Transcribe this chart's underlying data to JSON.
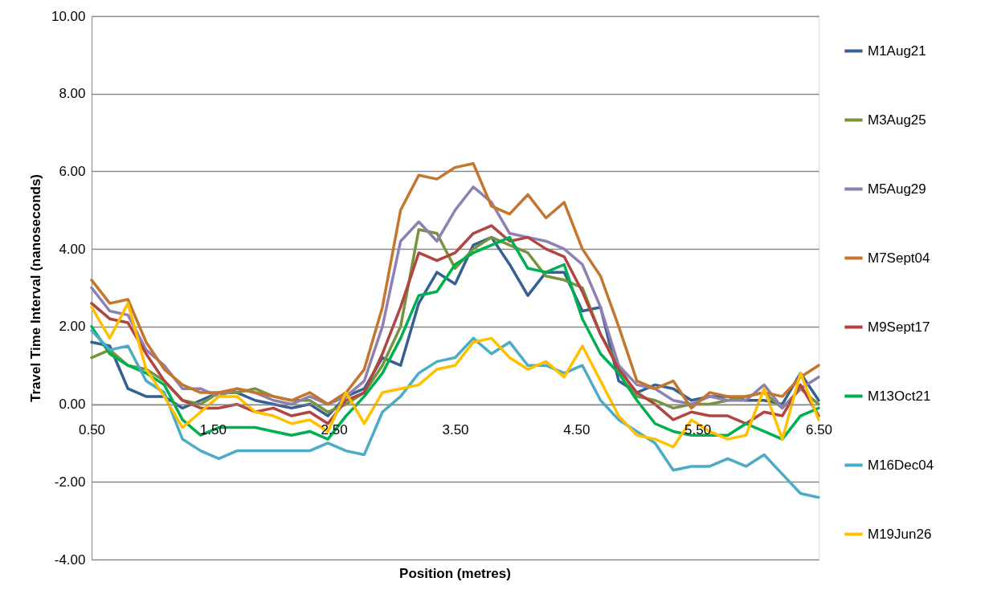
{
  "chart_data": {
    "type": "line",
    "xlabel": "Position (metres)",
    "ylabel": "Travel Time Interval (nanoseconds)",
    "x": [
      0.5,
      0.65,
      0.8,
      0.95,
      1.1,
      1.25,
      1.4,
      1.55,
      1.7,
      1.85,
      2.0,
      2.15,
      2.3,
      2.45,
      2.6,
      2.75,
      2.9,
      3.05,
      3.2,
      3.35,
      3.5,
      3.65,
      3.8,
      3.95,
      4.1,
      4.25,
      4.4,
      4.55,
      4.7,
      4.85,
      5.0,
      5.15,
      5.3,
      5.45,
      5.6,
      5.75,
      5.9,
      6.05,
      6.2,
      6.35,
      6.5
    ],
    "series": [
      {
        "name": "M1Aug21",
        "color": "#376092",
        "values": [
          1.6,
          1.5,
          0.4,
          0.2,
          0.2,
          -0.1,
          0.1,
          0.3,
          0.3,
          0.1,
          0.0,
          -0.1,
          0.0,
          -0.3,
          0.2,
          0.4,
          1.2,
          1.0,
          2.6,
          3.4,
          3.1,
          4.1,
          4.3,
          3.6,
          2.8,
          3.4,
          3.4,
          2.4,
          2.5,
          0.6,
          0.3,
          0.5,
          0.4,
          0.1,
          0.2,
          0.2,
          0.1,
          0.1,
          0.0,
          0.8,
          0.1
        ]
      },
      {
        "name": "M3Aug25",
        "color": "#77933c",
        "values": [
          1.2,
          1.4,
          1.0,
          0.9,
          0.6,
          0.1,
          0.0,
          0.3,
          0.3,
          0.4,
          0.2,
          0.1,
          0.1,
          -0.2,
          0.0,
          0.3,
          1.0,
          2.0,
          4.5,
          4.4,
          3.5,
          4.0,
          4.3,
          4.1,
          3.9,
          3.3,
          3.2,
          3.0,
          1.8,
          1.0,
          0.2,
          0.1,
          -0.1,
          0.0,
          0.0,
          0.1,
          0.2,
          0.3,
          -0.1,
          0.4,
          0.0
        ]
      },
      {
        "name": "M5Aug29",
        "color": "#8f7fb3",
        "values": [
          3.0,
          2.4,
          2.3,
          1.4,
          1.0,
          0.4,
          0.4,
          0.2,
          0.4,
          0.3,
          0.1,
          0.0,
          0.2,
          0.0,
          0.2,
          0.6,
          2.0,
          4.2,
          4.7,
          4.2,
          5.0,
          5.6,
          5.2,
          4.4,
          4.3,
          4.2,
          4.0,
          3.6,
          2.5,
          1.0,
          0.5,
          0.4,
          0.1,
          0.0,
          0.2,
          0.1,
          0.1,
          0.5,
          -0.1,
          0.4,
          0.7
        ]
      },
      {
        "name": "M7Sept04",
        "color": "#c4762f",
        "values": [
          3.2,
          2.6,
          2.7,
          1.6,
          0.9,
          0.5,
          0.3,
          0.3,
          0.4,
          0.3,
          0.2,
          0.1,
          0.3,
          0.0,
          0.3,
          0.9,
          2.5,
          5.0,
          5.9,
          5.8,
          6.1,
          6.2,
          5.1,
          4.9,
          5.4,
          4.8,
          5.2,
          4.0,
          3.3,
          2.0,
          0.6,
          0.4,
          0.6,
          -0.1,
          0.3,
          0.2,
          0.2,
          0.3,
          0.2,
          0.7,
          1.0
        ]
      },
      {
        "name": "M9Sept17",
        "color": "#b04542",
        "values": [
          2.6,
          2.2,
          2.1,
          1.3,
          0.6,
          0.1,
          -0.1,
          -0.1,
          0.0,
          -0.2,
          -0.1,
          -0.3,
          -0.2,
          -0.5,
          0.1,
          0.3,
          1.3,
          2.5,
          3.9,
          3.7,
          3.9,
          4.4,
          4.6,
          4.2,
          4.3,
          4.0,
          3.8,
          2.9,
          1.8,
          0.9,
          0.3,
          0.0,
          -0.4,
          -0.2,
          -0.3,
          -0.3,
          -0.5,
          -0.2,
          -0.3,
          0.5,
          -0.3
        ]
      },
      {
        "name": "M13Oct21",
        "color": "#00b050",
        "values": [
          2.0,
          1.3,
          1.0,
          0.8,
          0.5,
          -0.4,
          -0.8,
          -0.6,
          -0.6,
          -0.6,
          -0.7,
          -0.8,
          -0.7,
          -0.9,
          -0.3,
          0.2,
          0.8,
          1.7,
          2.8,
          2.9,
          3.6,
          3.9,
          4.1,
          4.3,
          3.5,
          3.4,
          3.6,
          2.2,
          1.3,
          0.8,
          0.1,
          -0.5,
          -0.7,
          -0.8,
          -0.8,
          -0.8,
          -0.5,
          -0.7,
          -0.9,
          -0.3,
          -0.1
        ]
      },
      {
        "name": "M16Dec04",
        "color": "#4bacc6",
        "values": [
          1.9,
          1.4,
          1.5,
          0.6,
          0.3,
          -0.9,
          -1.2,
          -1.4,
          -1.2,
          -1.2,
          -1.2,
          -1.2,
          -1.2,
          -1.0,
          -1.2,
          -1.3,
          -0.2,
          0.2,
          0.8,
          1.1,
          1.2,
          1.7,
          1.3,
          1.6,
          1.0,
          1.0,
          0.8,
          1.0,
          0.1,
          -0.4,
          -0.7,
          -1.0,
          -1.7,
          -1.6,
          -1.6,
          -1.4,
          -1.6,
          -1.3,
          -1.8,
          -2.3,
          -2.4
        ]
      },
      {
        "name": "M19Jun26",
        "color": "#ffc000",
        "values": [
          2.5,
          1.7,
          2.6,
          0.9,
          0.2,
          -0.6,
          -0.2,
          0.2,
          0.2,
          -0.2,
          -0.3,
          -0.5,
          -0.4,
          -0.7,
          0.3,
          -0.5,
          0.3,
          0.4,
          0.5,
          0.9,
          1.0,
          1.6,
          1.7,
          1.2,
          0.9,
          1.1,
          0.7,
          1.5,
          0.6,
          -0.3,
          -0.8,
          -0.9,
          -1.1,
          -0.4,
          -0.7,
          -0.9,
          -0.8,
          0.4,
          -0.9,
          0.8,
          -0.4
        ]
      }
    ],
    "xlim": [
      0.5,
      6.5
    ],
    "xticks": [
      {
        "value": 0.5,
        "label": "0.50"
      },
      {
        "value": 1.5,
        "label": "1.50"
      },
      {
        "value": 2.5,
        "label": "2.50"
      },
      {
        "value": 3.5,
        "label": "3.50"
      },
      {
        "value": 4.5,
        "label": "4.50"
      },
      {
        "value": 5.5,
        "label": "5.50"
      },
      {
        "value": 6.5,
        "label": "6.50"
      }
    ],
    "ylim": [
      -4,
      10
    ],
    "yticks": [
      {
        "value": -4,
        "label": "-4.00"
      },
      {
        "value": -2,
        "label": "-2.00"
      },
      {
        "value": 0,
        "label": "0.00"
      },
      {
        "value": 2,
        "label": "2.00"
      },
      {
        "value": 4,
        "label": "4.00"
      },
      {
        "value": 6,
        "label": "6.00"
      },
      {
        "value": 8,
        "label": "8.00"
      },
      {
        "value": 10,
        "label": "10.00"
      }
    ],
    "grid": "y",
    "legend": "right",
    "marker": "none",
    "line_style": "solid"
  }
}
